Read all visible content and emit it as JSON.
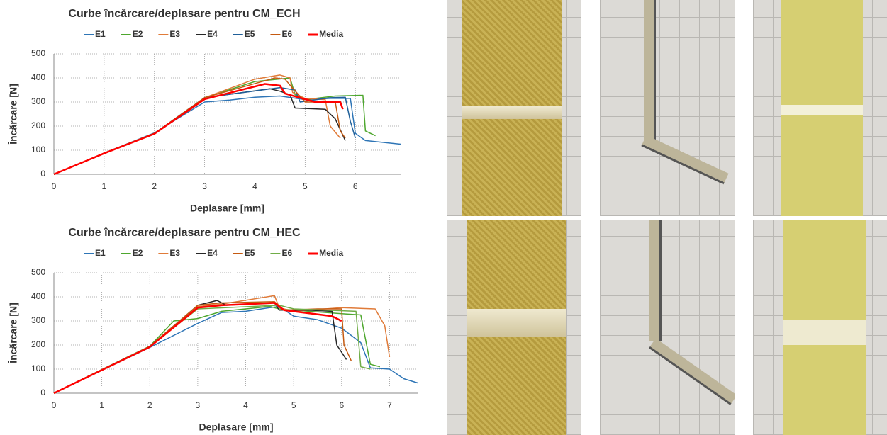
{
  "chart_data": [
    {
      "type": "line",
      "title": "Curbe încărcare/deplasare pentru CM_ECH",
      "x_label": "Deplasare  [mm]",
      "y_label": "Încărcare  [N]",
      "xlim": [
        0,
        6.9
      ],
      "xticks": [
        0,
        1,
        2,
        3,
        4,
        5,
        6
      ],
      "ylim": [
        0,
        500
      ],
      "yticks": [
        0,
        100,
        200,
        300,
        400,
        500
      ],
      "grid": true,
      "legend": "top",
      "series": [
        {
          "name": "E1",
          "color": "#2e75b6",
          "x": [
            0,
            1,
            2,
            3,
            3.5,
            4,
            4.5,
            5,
            5.5,
            5.9,
            6.0,
            6.2,
            6.9
          ],
          "values": [
            0,
            88,
            172,
            300,
            308,
            320,
            325,
            310,
            315,
            315,
            170,
            140,
            125
          ]
        },
        {
          "name": "E2",
          "color": "#4ea72e",
          "x": [
            0,
            1,
            2,
            3,
            4,
            4.7,
            4.8,
            5,
            5.6,
            6.15,
            6.2,
            6.4
          ],
          "values": [
            0,
            88,
            170,
            318,
            385,
            400,
            330,
            310,
            325,
            328,
            180,
            160
          ]
        },
        {
          "name": "E3",
          "color": "#e07b39",
          "x": [
            0,
            1,
            2,
            3,
            4,
            4.5,
            4.7,
            4.75,
            5,
            5.4,
            5.5,
            5.7
          ],
          "values": [
            0,
            88,
            170,
            318,
            395,
            412,
            400,
            340,
            315,
            310,
            200,
            150
          ]
        },
        {
          "name": "E4",
          "color": "#262626",
          "x": [
            0,
            1,
            2,
            3,
            4.3,
            4.5,
            4.7,
            4.8,
            5.4,
            5.6,
            5.8
          ],
          "values": [
            0,
            88,
            170,
            318,
            355,
            345,
            330,
            275,
            270,
            230,
            140
          ]
        },
        {
          "name": "E5",
          "color": "#1f5f99",
          "x": [
            0,
            1,
            2,
            3,
            4.5,
            4.8,
            4.9,
            5.5,
            5.8,
            5.9,
            6.0
          ],
          "values": [
            0,
            88,
            170,
            318,
            360,
            350,
            300,
            318,
            320,
            220,
            150
          ]
        },
        {
          "name": "E6",
          "color": "#c55a11",
          "x": [
            0,
            1,
            2,
            3,
            4.4,
            4.6,
            4.7,
            5.0,
            5.6,
            5.7,
            5.8
          ],
          "values": [
            0,
            88,
            170,
            318,
            400,
            395,
            370,
            300,
            300,
            180,
            150
          ]
        },
        {
          "name": "Media",
          "color": "#ff0000",
          "x": [
            0,
            1,
            2,
            3,
            4.2,
            4.5,
            4.6,
            5.2,
            5.7,
            5.75
          ],
          "values": [
            0,
            87,
            168,
            312,
            375,
            368,
            335,
            300,
            300,
            270
          ]
        }
      ]
    },
    {
      "type": "line",
      "title": "Curbe încărcare/deplasare pentru CM_HEC",
      "x_label": "Deplasare  [mm]",
      "y_label": "Încărcare  [N]",
      "xlim": [
        0,
        7.6
      ],
      "xticks": [
        0,
        1,
        2,
        3,
        4,
        5,
        6,
        7
      ],
      "ylim": [
        0,
        500
      ],
      "yticks": [
        0,
        100,
        200,
        300,
        400,
        500
      ],
      "grid": true,
      "legend": "top",
      "series": [
        {
          "name": "E1",
          "color": "#2e75b6",
          "x": [
            0,
            1,
            2,
            3,
            3.5,
            4,
            4.5,
            4.7,
            5,
            5.5,
            6,
            6.4,
            6.6,
            7.0,
            7.3,
            7.6
          ],
          "values": [
            0,
            95,
            190,
            290,
            335,
            340,
            355,
            360,
            320,
            305,
            270,
            210,
            105,
            100,
            60,
            42
          ]
        },
        {
          "name": "E2",
          "color": "#4ea72e",
          "x": [
            0,
            1,
            2,
            2.5,
            3,
            3.5,
            4.5,
            4.7,
            5,
            6,
            6.4,
            6.6,
            6.8
          ],
          "values": [
            0,
            98,
            195,
            300,
            310,
            340,
            360,
            350,
            345,
            330,
            325,
            120,
            110
          ]
        },
        {
          "name": "E3",
          "color": "#e07b39",
          "x": [
            0,
            1,
            2,
            3,
            3.5,
            4.6,
            4.7,
            5,
            6,
            6.7,
            6.9,
            7.0
          ],
          "values": [
            0,
            98,
            195,
            360,
            370,
            405,
            355,
            340,
            355,
            350,
            280,
            150
          ]
        },
        {
          "name": "E4",
          "color": "#262626",
          "x": [
            0,
            1,
            2,
            3,
            3.4,
            3.6,
            4.6,
            4.7,
            5.3,
            5.8,
            5.9,
            6.1
          ],
          "values": [
            0,
            98,
            195,
            365,
            385,
            365,
            375,
            345,
            345,
            340,
            200,
            140
          ]
        },
        {
          "name": "E5",
          "color": "#c55a11",
          "x": [
            0,
            1,
            2,
            3,
            3.5,
            4.6,
            4.8,
            5.5,
            6,
            6.05,
            6.2
          ],
          "values": [
            0,
            98,
            195,
            365,
            375,
            380,
            345,
            350,
            350,
            200,
            135
          ]
        },
        {
          "name": "E6",
          "color": "#70ad47",
          "x": [
            0,
            1,
            2,
            3,
            4.7,
            5,
            6.3,
            6.4,
            6.6
          ],
          "values": [
            0,
            98,
            195,
            350,
            365,
            350,
            340,
            110,
            100
          ]
        },
        {
          "name": "Media",
          "color": "#ff0000",
          "x": [
            0,
            1,
            2,
            3,
            3.5,
            4.6,
            4.8,
            5.8,
            6
          ],
          "values": [
            0,
            96,
            192,
            355,
            365,
            375,
            345,
            320,
            300
          ]
        }
      ]
    }
  ]
}
